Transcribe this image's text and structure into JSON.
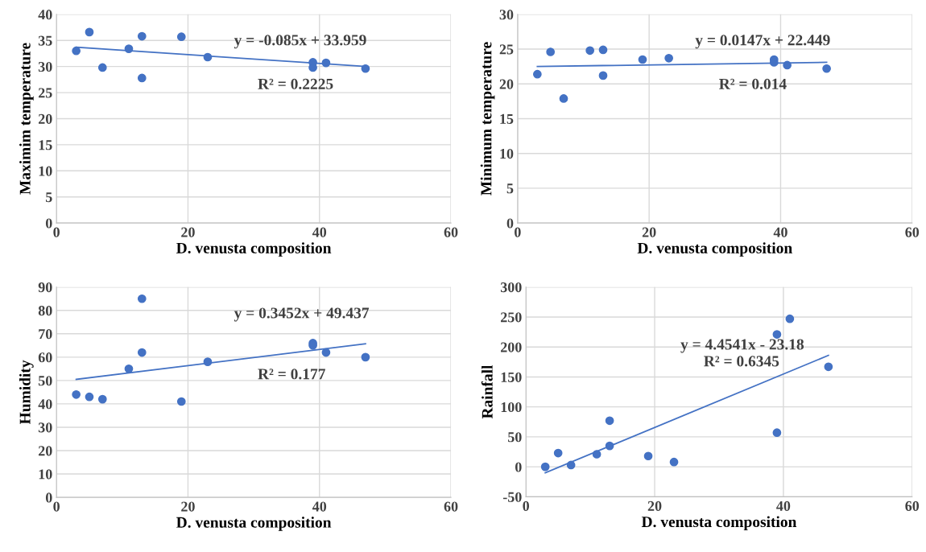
{
  "chart_data": [
    {
      "type": "scatter",
      "xlabel": "D. venusta composition",
      "ylabel": "Maximim temperature",
      "xlim": [
        0,
        60
      ],
      "xticks": [
        0,
        20,
        40,
        60
      ],
      "ylim": [
        0,
        40
      ],
      "yticks": [
        0,
        5,
        10,
        15,
        20,
        25,
        30,
        35,
        40
      ],
      "grid": true,
      "series": [
        {
          "color": "#4472c4",
          "marker": "circle",
          "x": [
            3,
            5,
            7,
            11,
            13,
            13,
            19,
            23,
            39,
            39,
            41,
            47
          ],
          "values": [
            33,
            36.6,
            29.8,
            33.4,
            35.8,
            27.8,
            35.7,
            31.8,
            30.8,
            29.8,
            30.7,
            29.6
          ]
        },
        {
          "type": "line",
          "color": "#4472c4",
          "x": [
            3,
            47
          ],
          "values": [
            33.7,
            30
          ]
        }
      ],
      "annotations": [
        "y = -0.085x + 33.959",
        "R² = 0.2225"
      ]
    },
    {
      "type": "scatter",
      "xlabel": "D. venusta composition",
      "ylabel": "Minimum temperature",
      "xlim": [
        0,
        60
      ],
      "xticks": [
        0,
        20,
        40,
        60
      ],
      "ylim": [
        0,
        30
      ],
      "yticks": [
        0,
        5,
        10,
        15,
        20,
        25,
        30
      ],
      "grid": true,
      "series": [
        {
          "color": "#4472c4",
          "marker": "circle",
          "x": [
            3,
            5,
            7,
            11,
            13,
            13,
            19,
            23,
            39,
            39,
            41,
            47
          ],
          "values": [
            21.4,
            24.6,
            17.9,
            24.8,
            24.9,
            21.2,
            23.5,
            23.7,
            23.5,
            23.1,
            22.7,
            22.2
          ]
        },
        {
          "type": "line",
          "color": "#4472c4",
          "x": [
            3,
            47
          ],
          "values": [
            22.5,
            23.1
          ]
        }
      ],
      "annotations": [
        "y = 0.0147x + 22.449",
        "R² = 0.014"
      ]
    },
    {
      "type": "scatter",
      "xlabel": "D. venusta composition",
      "ylabel": "Humidity",
      "xlim": [
        0,
        60
      ],
      "xticks": [
        0,
        20,
        40,
        60
      ],
      "ylim": [
        0,
        90
      ],
      "yticks": [
        0,
        10,
        20,
        30,
        40,
        50,
        60,
        70,
        80,
        90
      ],
      "grid": true,
      "series": [
        {
          "color": "#4472c4",
          "marker": "circle",
          "x": [
            3,
            5,
            7,
            11,
            13,
            13,
            19,
            23,
            39,
            39,
            41,
            47
          ],
          "values": [
            44,
            43,
            42,
            55,
            85,
            62,
            41,
            58,
            66,
            65,
            62,
            60
          ]
        },
        {
          "type": "line",
          "color": "#4472c4",
          "x": [
            3,
            47
          ],
          "values": [
            50.5,
            65.7
          ]
        }
      ],
      "annotations": [
        "y = 0.3452x + 49.437",
        "R² = 0.177"
      ]
    },
    {
      "type": "scatter",
      "xlabel": "D. venusta composition",
      "ylabel": "Rainfall",
      "xlim": [
        0,
        60
      ],
      "xticks": [
        0,
        20,
        40,
        60
      ],
      "ylim": [
        -50,
        300
      ],
      "yticks": [
        -50,
        0,
        50,
        100,
        150,
        200,
        250,
        300
      ],
      "grid": true,
      "series": [
        {
          "color": "#4472c4",
          "marker": "circle",
          "x": [
            3,
            5,
            7,
            11,
            13,
            13,
            19,
            23,
            39,
            39,
            41,
            47
          ],
          "values": [
            0,
            23,
            3,
            21,
            77,
            35,
            18,
            8,
            221,
            57,
            247,
            167
          ]
        },
        {
          "type": "line",
          "color": "#4472c4",
          "x": [
            3,
            47
          ],
          "values": [
            -10,
            186
          ]
        }
      ],
      "annotations": [
        "y = 4.4541x - 23.18",
        "R² = 0.6345"
      ]
    }
  ]
}
